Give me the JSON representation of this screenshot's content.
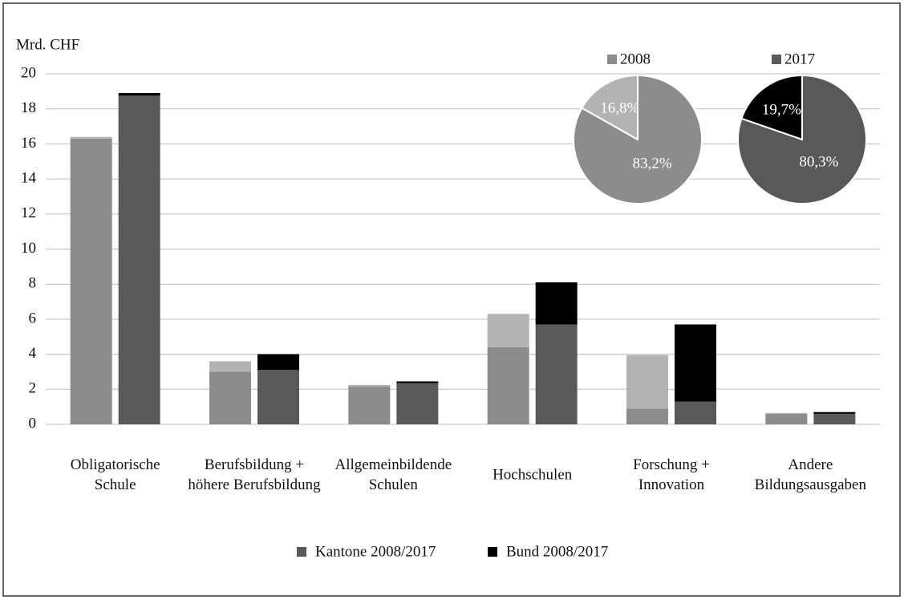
{
  "chart_data": [
    {
      "type": "grouped-stacked-bar",
      "y_label": "Mrd. CHF",
      "categories": [
        [
          "Obligatorische",
          "Schule"
        ],
        [
          "Berufsbildung +",
          "höhere Berufsbildung"
        ],
        [
          "Allgemeinbildende",
          "Schulen"
        ],
        [
          "Hochschulen"
        ],
        [
          "Forschung +",
          "Innovation"
        ],
        [
          "Andere",
          "Bildungsausgaben"
        ]
      ],
      "series": [
        {
          "name": "Kantone 2008/2017",
          "color": "#595959",
          "colors": [
            "#8c8c8c",
            "#595959"
          ],
          "values": [
            [
              16.3,
              18.75
            ],
            [
              3.0,
              3.1
            ],
            [
              2.15,
              2.35
            ],
            [
              4.4,
              5.7
            ],
            [
              0.9,
              1.3
            ],
            [
              0.6,
              0.6
            ]
          ]
        },
        {
          "name": "Bund 2008/2017",
          "color": "#000000",
          "colors": [
            "#b3b3b3",
            "#000000"
          ],
          "values": [
            [
              0.1,
              0.15
            ],
            [
              0.6,
              0.9
            ],
            [
              0.1,
              0.1
            ],
            [
              1.9,
              2.4
            ],
            [
              3.05,
              4.4
            ],
            [
              0.05,
              0.1
            ]
          ]
        }
      ],
      "ylim": [
        0,
        20
      ],
      "yticks": [
        0,
        2,
        4,
        6,
        8,
        10,
        12,
        14,
        16,
        18,
        20
      ],
      "grid": true
    },
    {
      "type": "pie",
      "title": "2008",
      "color": "#8c8c8c",
      "values": [
        16.8,
        83.2
      ],
      "value_labels": [
        "16,8%",
        "83,2%"
      ],
      "colors": [
        "#b3b3b3",
        "#8c8c8c"
      ]
    },
    {
      "type": "pie",
      "title": "2017",
      "color": "#595959",
      "values": [
        19.7,
        80.3
      ],
      "value_labels": [
        "19,7%",
        "80,3%"
      ],
      "colors": [
        "#000000",
        "#595959"
      ]
    }
  ]
}
